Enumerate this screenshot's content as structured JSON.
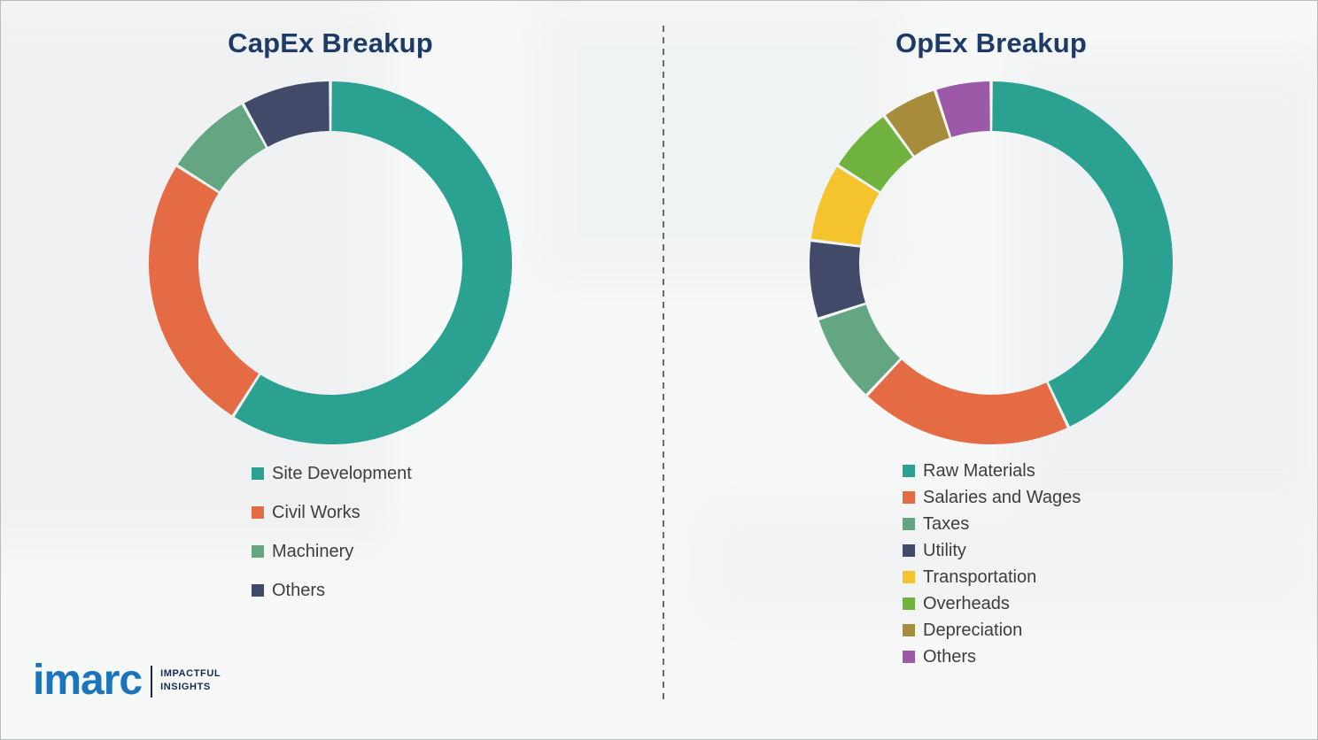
{
  "page": {
    "background_color": "#f7f8f8",
    "border_color": "#b9bcbe",
    "title_color": "#1E3A66"
  },
  "divider": {
    "orientation": "vertical",
    "style": "dashed",
    "color": "#6a6a6a"
  },
  "chart_data": [
    {
      "type": "pie",
      "variant": "donut",
      "title": "CapEx Breakup",
      "categories": [
        "Site Development",
        "Civil Works",
        "Machinery",
        "Others"
      ],
      "values": [
        59,
        25,
        8,
        8
      ],
      "values_are_estimates": true,
      "colors": [
        "#2AA191",
        "#E56B45",
        "#63A681",
        "#414A68"
      ],
      "start_angle_deg": 0,
      "direction": "clockwise",
      "legend_position": "below"
    },
    {
      "type": "pie",
      "variant": "donut",
      "title": "OpEx Breakup",
      "categories": [
        "Raw Materials",
        "Salaries and Wages",
        "Taxes",
        "Utility",
        "Transportation",
        "Overheads",
        "Depreciation",
        "Others"
      ],
      "values": [
        43,
        19,
        8,
        7,
        7,
        6,
        5,
        5
      ],
      "values_are_estimates": true,
      "colors": [
        "#2AA191",
        "#E56B45",
        "#63A681",
        "#414A68",
        "#F5C32C",
        "#6FB33E",
        "#A78D3B",
        "#9C59A8"
      ],
      "start_angle_deg": 0,
      "direction": "clockwise",
      "legend_position": "below"
    }
  ],
  "logo": {
    "brand": "imarc",
    "tagline_line1": "IMPACTFUL",
    "tagline_line2": "INSIGHTS",
    "brand_color": "#1B75BC",
    "tagline_color": "#162A52"
  }
}
